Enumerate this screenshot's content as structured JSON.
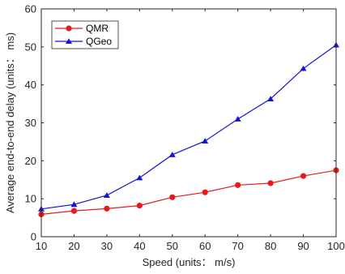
{
  "chart_data": {
    "type": "line",
    "title": "",
    "xlabel": "Speed (units： m/s)",
    "ylabel": "Average end-to-end delay (units： ms)",
    "x": [
      10,
      20,
      30,
      40,
      50,
      60,
      70,
      80,
      90,
      100
    ],
    "xlim": [
      10,
      100
    ],
    "ylim": [
      0,
      60
    ],
    "xticks": [
      "10",
      "20",
      "30",
      "40",
      "50",
      "60",
      "70",
      "80",
      "90",
      "100"
    ],
    "yticks": [
      "0",
      "10",
      "20",
      "30",
      "40",
      "50",
      "60"
    ],
    "grid": false,
    "legend_position": "top-left",
    "series": [
      {
        "name": "QMR",
        "color": "#e8191b",
        "marker": "circle",
        "values": [
          5.9,
          6.8,
          7.4,
          8.2,
          10.4,
          11.7,
          13.6,
          14.1,
          16.0,
          17.5
        ]
      },
      {
        "name": "QGeo",
        "color": "#1414d2",
        "marker": "triangle",
        "values": [
          7.3,
          8.5,
          10.9,
          15.5,
          21.6,
          25.2,
          31.0,
          36.3,
          44.3,
          50.5
        ]
      }
    ]
  }
}
